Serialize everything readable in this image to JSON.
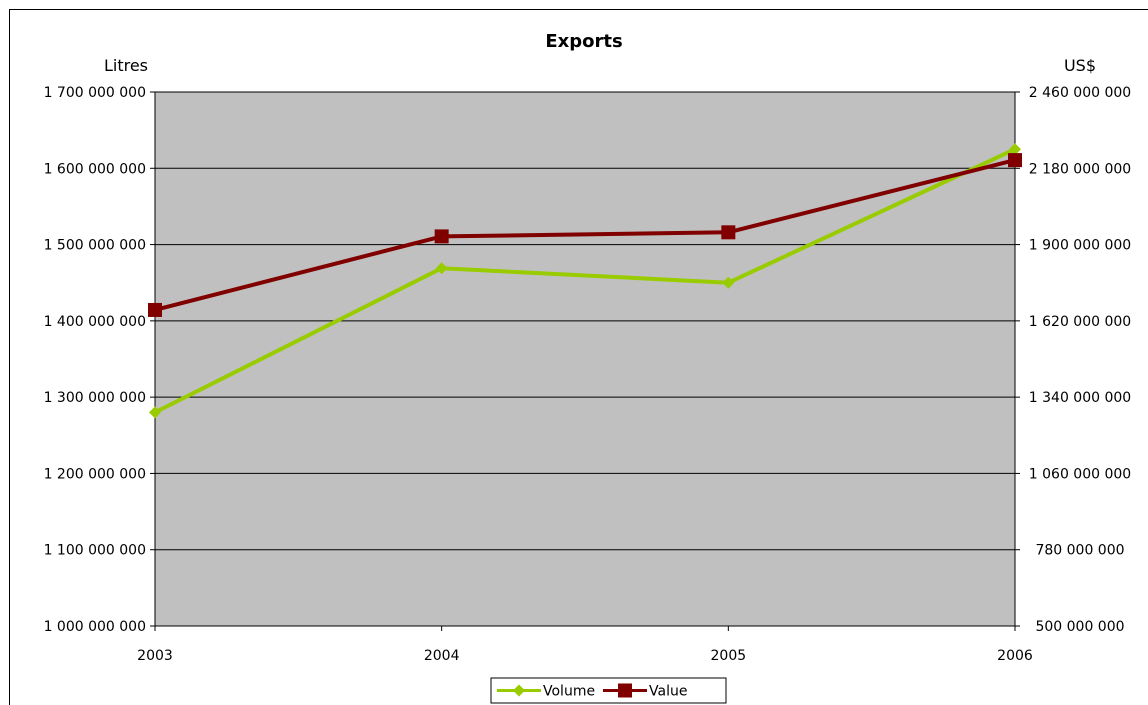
{
  "chart_data": {
    "type": "line",
    "title": "Exports",
    "categories": [
      "2003",
      "2004",
      "2005",
      "2006"
    ],
    "y_left": {
      "label": "Litres",
      "range": [
        1000000000,
        1700000000
      ],
      "ticks": [
        1000000000,
        1100000000,
        1200000000,
        1300000000,
        1400000000,
        1500000000,
        1600000000,
        1700000000
      ],
      "tick_labels": [
        "1 000 000 000",
        "1 100 000 000",
        "1 200 000 000",
        "1 300 000 000",
        "1 400 000 000",
        "1 500 000 000",
        "1 600 000 000",
        "1 700 000 000"
      ]
    },
    "y_right": {
      "label": "US$",
      "range": [
        500000000,
        2460000000
      ],
      "ticks": [
        500000000,
        780000000,
        1060000000,
        1340000000,
        1620000000,
        1900000000,
        2180000000,
        2460000000
      ],
      "tick_labels": [
        "500 000 000",
        "780 000 000",
        "1 060 000 000",
        "1 340 000 000",
        "1 620 000 000",
        "1 900 000 000",
        "2 180 000 000",
        "2 460 000 000"
      ]
    },
    "series": [
      {
        "name": "Volume",
        "axis": "left",
        "color": "#99cc00",
        "marker": "diamond",
        "values": [
          1280000000,
          1469000000,
          1450000000,
          1625000000
        ]
      },
      {
        "name": "Value",
        "axis": "right",
        "color": "#800000",
        "marker": "square",
        "values": [
          1660000000,
          1930000000,
          1945000000,
          2210000000
        ]
      }
    ],
    "plot_background": "#c0c0c0",
    "grid": true,
    "legend_position": "bottom"
  }
}
